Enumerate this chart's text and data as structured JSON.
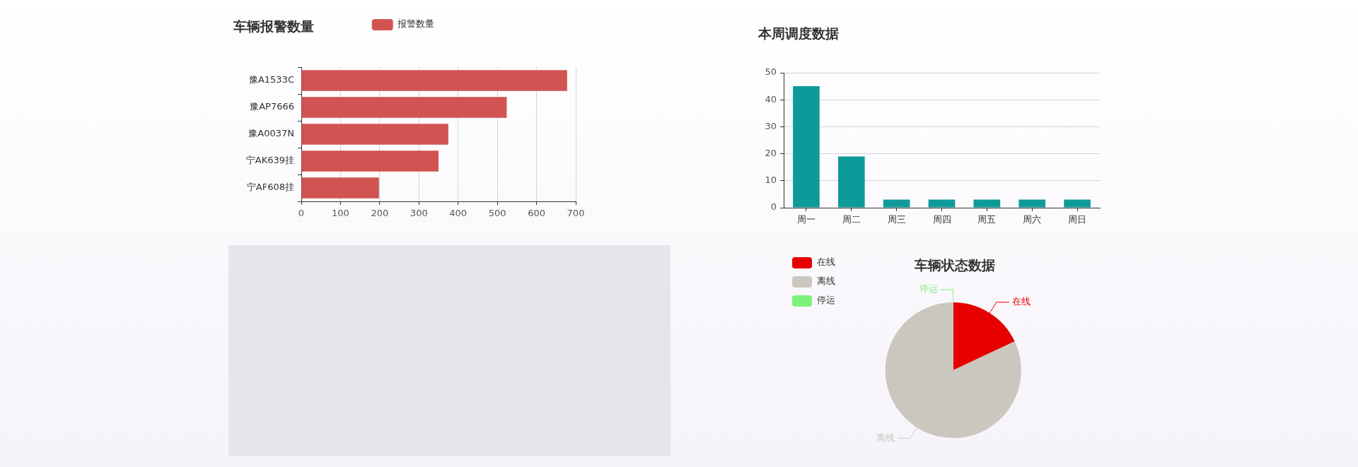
{
  "chart_data": [
    {
      "type": "bar",
      "title": "车辆报警数量",
      "orientation": "horizontal",
      "categories": [
        "豫A1533C",
        "豫AP7666",
        "豫A0037N",
        "宁AK639挂",
        "宁AF608挂"
      ],
      "series": [
        {
          "name": "报警数量",
          "color": "#d15452",
          "values": [
            678,
            524,
            375,
            350,
            198
          ]
        }
      ],
      "xlim": [
        0,
        700
      ],
      "xticks": [
        0,
        100,
        200,
        300,
        400,
        500,
        600,
        700
      ],
      "grid": "x",
      "legend": "top"
    },
    {
      "type": "bar",
      "title": "本周调度数据",
      "categories": [
        "周一",
        "周二",
        "周三",
        "周四",
        "周五",
        "周六",
        "周日"
      ],
      "values": [
        45,
        19,
        3,
        3,
        3,
        3,
        3
      ],
      "color": "#0e9a99",
      "ylim": [
        0,
        50
      ],
      "yticks": [
        0,
        10,
        20,
        30,
        40,
        50
      ],
      "grid": "y"
    },
    {
      "type": "pie",
      "title": "车辆状态数据",
      "categories": [
        "在线",
        "离线",
        "停运"
      ],
      "values": [
        18,
        82,
        0
      ],
      "colors": [
        "#e60000",
        "#c9c7be",
        "#7cf27c"
      ],
      "legend": "top left"
    }
  ]
}
